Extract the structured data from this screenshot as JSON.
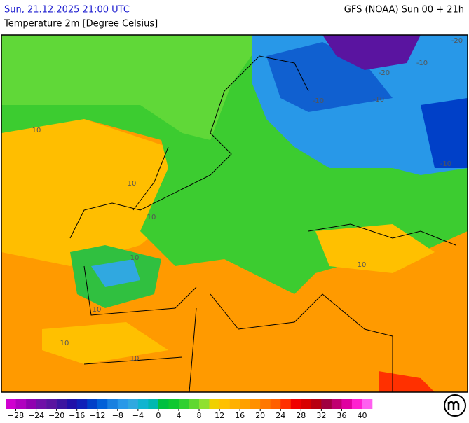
{
  "header": {
    "valid_time": "Sun, 21.12.2025 21:00 UTC",
    "model": "GFS (NOAA) Sun 00 + 21h",
    "parameter": "Temperature 2m [Degree Celsius]"
  },
  "map": {
    "contour_labels": [
      "-20",
      "-20",
      "-10",
      "-10",
      "-10",
      "-10",
      "10",
      "10",
      "10",
      "10",
      "10",
      "10",
      "10",
      "10"
    ]
  },
  "colorbar": {
    "colors": [
      "#d000d0",
      "#b000c0",
      "#9000b0",
      "#7010a8",
      "#5a14a0",
      "#3c14a0",
      "#2010a8",
      "#1020b8",
      "#0040c8",
      "#0060d8",
      "#1880e0",
      "#2898e8",
      "#30a8e0",
      "#10b4d0",
      "#00b8b0",
      "#00c040",
      "#10c830",
      "#30d030",
      "#60d830",
      "#90e030",
      "#f0d000",
      "#ffc000",
      "#ffb000",
      "#ffa000",
      "#ff9000",
      "#ff7800",
      "#ff6000",
      "#ff3000",
      "#f00000",
      "#d80000",
      "#b80010",
      "#a00040",
      "#c00070",
      "#e000a0",
      "#ff20d0",
      "#ff60f0"
    ],
    "ticks": [
      {
        "value": -28,
        "label": "−28"
      },
      {
        "value": -24,
        "label": "−24"
      },
      {
        "value": -20,
        "label": "−20"
      },
      {
        "value": -16,
        "label": "−16"
      },
      {
        "value": -12,
        "label": "−12"
      },
      {
        "value": -8,
        "label": "−8"
      },
      {
        "value": -4,
        "label": "−4"
      },
      0,
      4,
      8,
      12,
      16,
      20,
      24,
      28,
      32,
      36,
      40
    ]
  }
}
